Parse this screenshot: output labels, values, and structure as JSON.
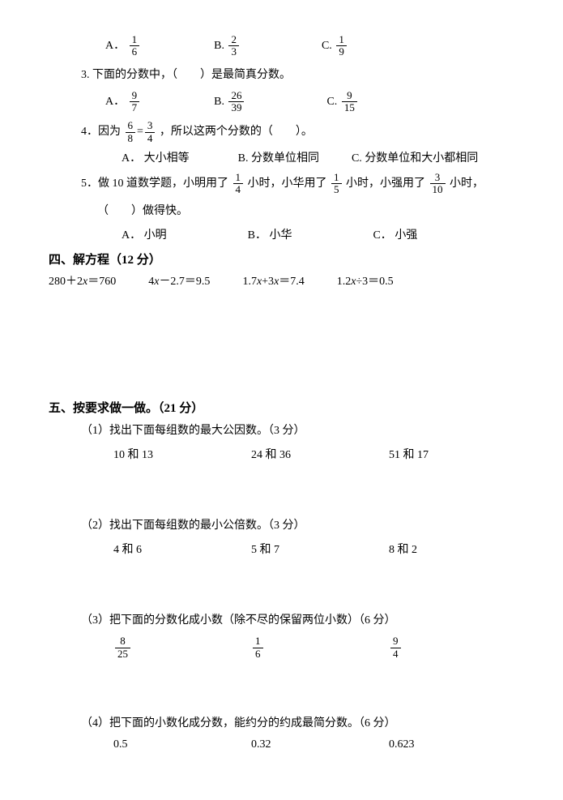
{
  "font": {
    "body_size_pt": 10.5,
    "title_size_pt": 11,
    "family": "SimSun",
    "color": "#000000"
  },
  "background_color": "#ffffff",
  "q2": {
    "options": [
      {
        "label": "A．",
        "num": "1",
        "den": "6"
      },
      {
        "label": "B.",
        "num": "2",
        "den": "3"
      },
      {
        "label": "C.",
        "num": "1",
        "den": "9"
      }
    ]
  },
  "q3": {
    "stem": "3. 下面的分数中，（　　）是最简真分数。",
    "options": [
      {
        "label": "A．",
        "num": "9",
        "den": "7"
      },
      {
        "label": "B.",
        "num": "26",
        "den": "39"
      },
      {
        "label": "C.",
        "num": "9",
        "den": "15"
      }
    ]
  },
  "q4": {
    "stem_pre": "4．因为",
    "eq_left": {
      "num": "6",
      "den": "8"
    },
    "eq_right": {
      "num": "3",
      "den": "4"
    },
    "stem_post": "，所以这两个分数的（　　）。",
    "options": [
      {
        "label": "A．",
        "text": "大小相等"
      },
      {
        "label": "B.",
        "text": "分数单位相同"
      },
      {
        "label": "C.",
        "text": "分数单位和大小都相同"
      }
    ]
  },
  "q5": {
    "stem_a": "5．做 10 道数学题，小明用了",
    "f1": {
      "num": "1",
      "den": "4"
    },
    "stem_b": " 小时，小华用了",
    "f2": {
      "num": "1",
      "den": "5"
    },
    "stem_c": " 小时，小强用了",
    "f3": {
      "num": "3",
      "den": "10"
    },
    "stem_d": " 小时，",
    "stem_line2": "（　　）做得快。",
    "options": [
      {
        "label": "A．",
        "text": "小明"
      },
      {
        "label": "B．",
        "text": "小华"
      },
      {
        "label": "C．",
        "text": "小强"
      }
    ]
  },
  "sec4": {
    "title": "四、解方程（12 分）",
    "equations": [
      "280＋2x＝760",
      "4x－2.7＝9.5",
      "1.7x+3x＝7.4",
      "1.2x÷3＝0.5"
    ]
  },
  "sec5": {
    "title": "五、按要求做一做。（21 分）",
    "p1": {
      "stem": "（1）找出下面每组数的最大公因数。（3 分）",
      "items": [
        "10 和 13",
        "24 和 36",
        "51 和 17"
      ]
    },
    "p2": {
      "stem": "（2）找出下面每组数的最小公倍数。（3 分）",
      "items": [
        "4 和 6",
        "5 和 7",
        "8 和 2"
      ]
    },
    "p3": {
      "stem": "（3）把下面的分数化成小数（除不尽的保留两位小数）（6 分）",
      "items": [
        {
          "num": "8",
          "den": "25"
        },
        {
          "num": "1",
          "den": "6"
        },
        {
          "num": "9",
          "den": "4"
        }
      ]
    },
    "p4": {
      "stem": "（4）把下面的小数化成分数，能约分的约成最简分数。（6 分）",
      "items": [
        "0.5",
        "0.32",
        "0.623"
      ]
    }
  }
}
